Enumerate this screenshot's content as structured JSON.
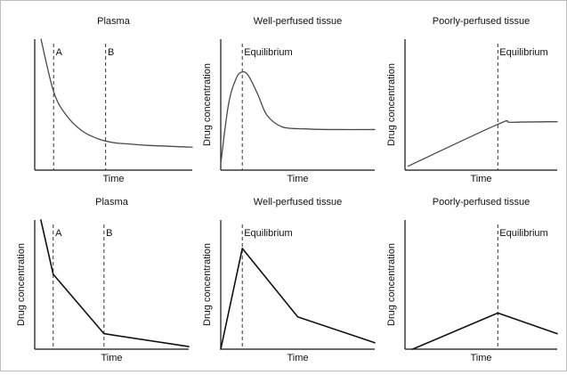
{
  "colors": {
    "axis": "#111111",
    "curve_smooth": "#4a4a4a",
    "curve_linear": "#111111",
    "marker_line": "#333333"
  },
  "chart_data": [
    {
      "type": "line",
      "title": "Plasma",
      "xlabel": "Time",
      "ylabel": "",
      "xlim": [
        0,
        100
      ],
      "ylim": [
        0,
        100
      ],
      "grid": false,
      "style": "smooth",
      "series": [
        {
          "x": [
            4,
            12,
            20,
            30,
            40,
            50,
            60,
            70,
            80,
            90,
            100
          ],
          "y": [
            100,
            60,
            42,
            30,
            24,
            21,
            20,
            19,
            18.5,
            18,
            17.5
          ]
        }
      ],
      "markers": [
        {
          "x": 12,
          "label": "A"
        },
        {
          "x": 45,
          "label": "B"
        }
      ]
    },
    {
      "type": "line",
      "title": "Well-perfused tissue",
      "xlabel": "Time",
      "ylabel": "Drug concentration",
      "xlim": [
        0,
        100
      ],
      "ylim": [
        0,
        100
      ],
      "grid": false,
      "style": "smooth",
      "series": [
        {
          "x": [
            0,
            5,
            10,
            14,
            18,
            24,
            30,
            40,
            55,
            70,
            100
          ],
          "y": [
            5,
            50,
            70,
            75,
            72,
            58,
            42,
            33,
            31.5,
            31,
            31
          ]
        }
      ],
      "markers": [
        {
          "x": 14,
          "label": "Equilibrium"
        }
      ]
    },
    {
      "type": "line",
      "title": "Poorly-perfused tissue",
      "xlabel": "Time",
      "ylabel": "Drug concentration",
      "xlim": [
        0,
        100
      ],
      "ylim": [
        0,
        100
      ],
      "grid": false,
      "style": "smooth",
      "series": [
        {
          "x": [
            2,
            61,
            70,
            100
          ],
          "y": [
            3,
            35,
            36.5,
            37
          ]
        }
      ],
      "markers": [
        {
          "x": 61,
          "label": "Equilibrium"
        }
      ]
    },
    {
      "type": "line",
      "title": "Plasma",
      "xlabel": "Time",
      "ylabel": "Drug concentration",
      "xlim": [
        0,
        100
      ],
      "ylim": [
        0,
        100
      ],
      "grid": false,
      "style": "linear",
      "series": [
        {
          "x": [
            4,
            12,
            45,
            100
          ],
          "y": [
            100,
            58,
            12,
            2
          ]
        }
      ],
      "markers": [
        {
          "x": 12,
          "label": "A"
        },
        {
          "x": 45,
          "label": "B"
        }
      ]
    },
    {
      "type": "line",
      "title": "Well-perfused tissue",
      "xlabel": "Time",
      "ylabel": "Drug concentration",
      "xlim": [
        0,
        100
      ],
      "ylim": [
        0,
        100
      ],
      "grid": false,
      "style": "linear",
      "series": [
        {
          "x": [
            0,
            14,
            50,
            100
          ],
          "y": [
            0,
            78,
            25,
            5
          ]
        }
      ],
      "markers": [
        {
          "x": 14,
          "label": "Equilibrium"
        }
      ]
    },
    {
      "type": "line",
      "title": "Poorly-perfused tissue",
      "xlabel": "Time",
      "ylabel": "Drug concentration",
      "xlim": [
        0,
        100
      ],
      "ylim": [
        0,
        100
      ],
      "grid": false,
      "style": "linear",
      "series": [
        {
          "x": [
            5,
            61,
            100
          ],
          "y": [
            0,
            28,
            12
          ]
        }
      ],
      "markers": [
        {
          "x": 61,
          "label": "Equilibrium"
        }
      ]
    }
  ]
}
